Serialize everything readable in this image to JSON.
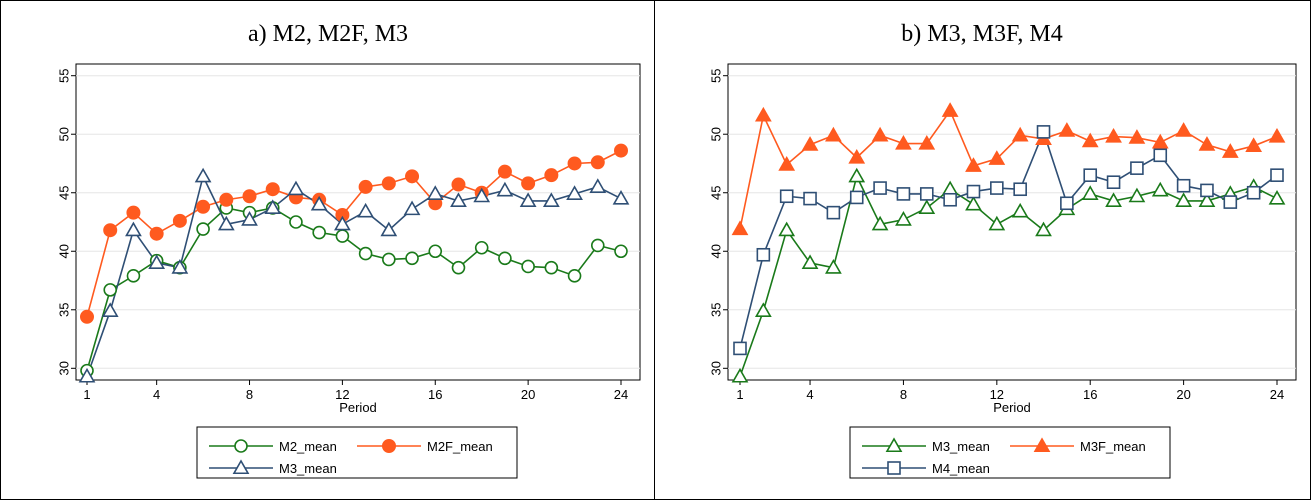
{
  "chart_data": [
    {
      "type": "line",
      "title": "a) M2, M2F, M3",
      "xlabel": "Period",
      "ylabel": "",
      "xlim": [
        1,
        24
      ],
      "ylim": [
        29,
        56
      ],
      "xticks": [
        1,
        4,
        8,
        12,
        16,
        20,
        24
      ],
      "yticks": [
        30,
        35,
        40,
        45,
        50,
        55
      ],
      "grid": true,
      "legend_position": "bottom",
      "x": [
        1,
        2,
        3,
        4,
        5,
        6,
        7,
        8,
        9,
        10,
        11,
        12,
        13,
        14,
        15,
        16,
        17,
        18,
        19,
        20,
        21,
        22,
        23,
        24
      ],
      "series": [
        {
          "name": "M2_mean",
          "color": "#1a7a1a",
          "marker": "circle-open",
          "values": [
            29.8,
            36.7,
            37.9,
            39.2,
            38.6,
            41.9,
            43.7,
            43.3,
            43.7,
            42.5,
            41.6,
            41.3,
            39.8,
            39.3,
            39.4,
            40.0,
            38.6,
            40.3,
            39.4,
            38.7,
            38.6,
            37.9,
            40.5,
            40.0
          ]
        },
        {
          "name": "M2F_mean",
          "color": "#ff5a1f",
          "marker": "circle-filled",
          "values": [
            34.4,
            41.8,
            43.3,
            41.5,
            42.6,
            43.8,
            44.4,
            44.7,
            45.3,
            44.6,
            44.4,
            43.1,
            45.5,
            45.8,
            46.4,
            44.1,
            45.7,
            45.0,
            46.8,
            45.8,
            46.5,
            47.5,
            47.6,
            48.6
          ]
        },
        {
          "name": "M3_mean",
          "color": "#2f4f75",
          "marker": "triangle-open",
          "values": [
            29.3,
            34.9,
            41.8,
            39.0,
            38.6,
            46.4,
            42.3,
            42.7,
            43.7,
            45.3,
            44.0,
            42.3,
            43.4,
            41.8,
            43.6,
            44.9,
            44.3,
            44.7,
            45.2,
            44.3,
            44.3,
            44.9,
            45.5,
            44.5
          ]
        }
      ]
    },
    {
      "type": "line",
      "title": "b) M3, M3F, M4",
      "xlabel": "Period",
      "ylabel": "",
      "xlim": [
        1,
        24
      ],
      "ylim": [
        29,
        56
      ],
      "xticks": [
        1,
        4,
        8,
        12,
        16,
        20,
        24
      ],
      "yticks": [
        30,
        35,
        40,
        45,
        50,
        55
      ],
      "grid": true,
      "legend_position": "bottom",
      "x": [
        1,
        2,
        3,
        4,
        5,
        6,
        7,
        8,
        9,
        10,
        11,
        12,
        13,
        14,
        15,
        16,
        17,
        18,
        19,
        20,
        21,
        22,
        23,
        24
      ],
      "series": [
        {
          "name": "M3_mean",
          "color": "#1a7a1a",
          "marker": "triangle-open",
          "values": [
            29.3,
            34.9,
            41.8,
            39.0,
            38.6,
            46.4,
            42.3,
            42.7,
            43.7,
            45.3,
            44.0,
            42.3,
            43.4,
            41.8,
            43.6,
            44.9,
            44.3,
            44.7,
            45.2,
            44.3,
            44.3,
            44.9,
            45.5,
            44.5
          ]
        },
        {
          "name": "M3F_mean",
          "color": "#ff5a1f",
          "marker": "triangle-filled",
          "values": [
            41.9,
            51.6,
            47.4,
            49.1,
            49.9,
            48.0,
            49.9,
            49.2,
            49.2,
            52.0,
            47.3,
            47.9,
            49.9,
            49.6,
            50.3,
            49.4,
            49.8,
            49.7,
            49.3,
            50.3,
            49.1,
            48.5,
            49.0,
            49.8
          ]
        },
        {
          "name": "M4_mean",
          "color": "#2f4f75",
          "marker": "square-open",
          "values": [
            31.7,
            39.7,
            44.7,
            44.5,
            43.3,
            44.6,
            45.4,
            44.9,
            44.9,
            44.4,
            45.1,
            45.4,
            45.3,
            50.2,
            44.1,
            46.5,
            45.9,
            47.1,
            48.2,
            45.6,
            45.2,
            44.2,
            45.0,
            46.5
          ]
        }
      ]
    }
  ]
}
